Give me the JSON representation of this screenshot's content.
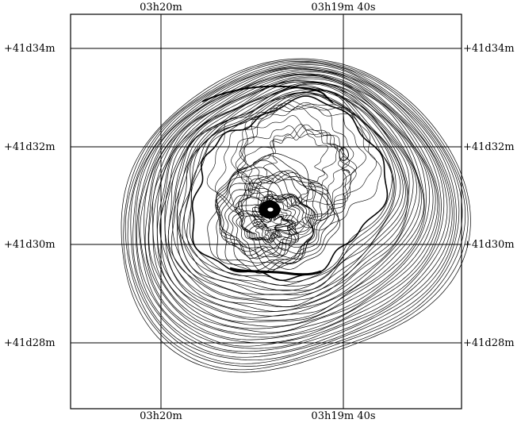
{
  "plot": {
    "ra_labels": [
      "03h20m",
      "03h19m 40s"
    ],
    "dec_labels": [
      "+41d34m",
      "+41d32m",
      "+41d30m",
      "+41d28m"
    ]
  },
  "colors": {
    "line": "#000000",
    "background": "#ffffff"
  }
}
